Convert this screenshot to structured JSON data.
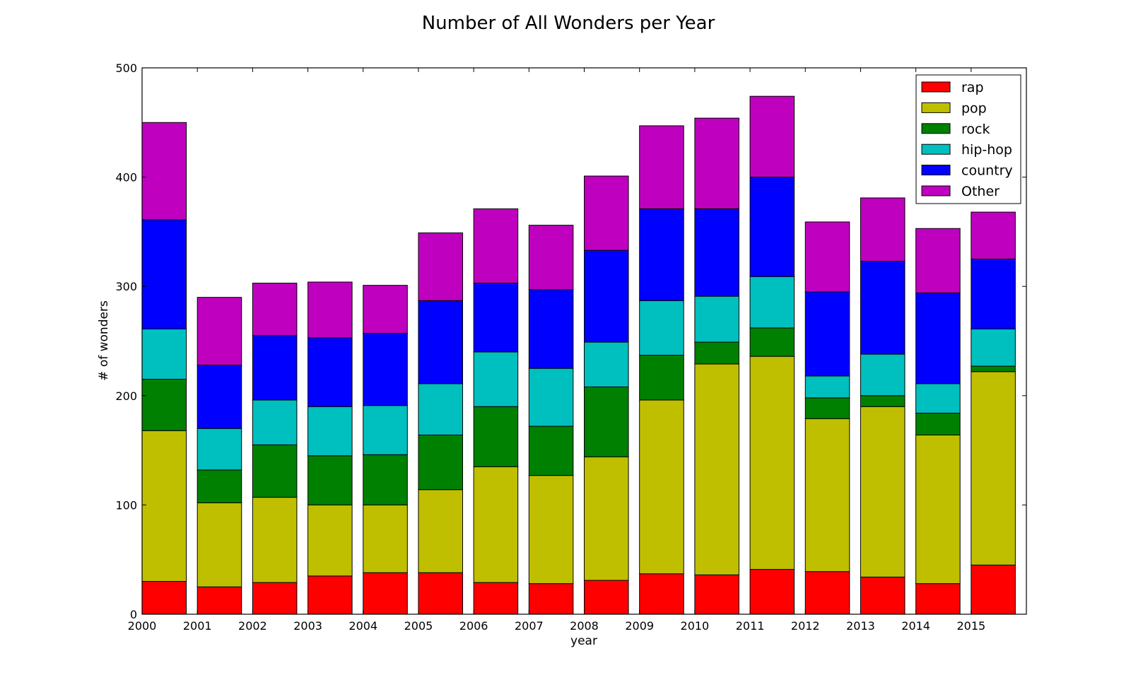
{
  "chart_data": {
    "type": "bar",
    "stacked": true,
    "title": "Number of All Wonders per Year",
    "xlabel": "year",
    "ylabel": "# of wonders",
    "ylim": [
      0,
      500
    ],
    "yticks": [
      0,
      100,
      200,
      300,
      400,
      500
    ],
    "xlim": [
      2000,
      2016
    ],
    "xticks": [
      "2000",
      "2001",
      "2002",
      "2003",
      "2004",
      "2005",
      "2006",
      "2007",
      "2008",
      "2009",
      "2010",
      "2011",
      "2012",
      "2013",
      "2014",
      "2015"
    ],
    "categories": [
      "2000",
      "2001",
      "2002",
      "2003",
      "2004",
      "2005",
      "2006",
      "2007",
      "2008",
      "2009",
      "2010",
      "2011",
      "2012",
      "2013",
      "2014",
      "2015"
    ],
    "bar_width": 0.8,
    "grid": false,
    "legend": "top-right",
    "series": [
      {
        "name": "rap",
        "color": "#ff0000",
        "values": [
          30,
          25,
          29,
          35,
          38,
          38,
          29,
          28,
          31,
          37,
          36,
          41,
          39,
          34,
          28,
          45
        ]
      },
      {
        "name": "pop",
        "color": "#bfbf00",
        "values": [
          138,
          77,
          78,
          65,
          62,
          76,
          106,
          99,
          113,
          159,
          193,
          195,
          140,
          156,
          136,
          177
        ]
      },
      {
        "name": "rock",
        "color": "#008000",
        "values": [
          47,
          30,
          48,
          45,
          46,
          50,
          55,
          45,
          64,
          41,
          20,
          26,
          19,
          10,
          20,
          5
        ]
      },
      {
        "name": "hip-hop",
        "color": "#00bfbf",
        "values": [
          46,
          38,
          41,
          45,
          45,
          47,
          50,
          53,
          41,
          50,
          42,
          47,
          20,
          38,
          27,
          34
        ]
      },
      {
        "name": "country",
        "color": "#0000ff",
        "values": [
          100,
          58,
          59,
          63,
          66,
          76,
          63,
          72,
          84,
          84,
          80,
          91,
          77,
          85,
          83,
          64
        ]
      },
      {
        "name": "Other",
        "color": "#bf00bf",
        "values": [
          89,
          62,
          48,
          51,
          44,
          62,
          68,
          59,
          68,
          76,
          83,
          74,
          64,
          58,
          59,
          43
        ]
      }
    ]
  }
}
